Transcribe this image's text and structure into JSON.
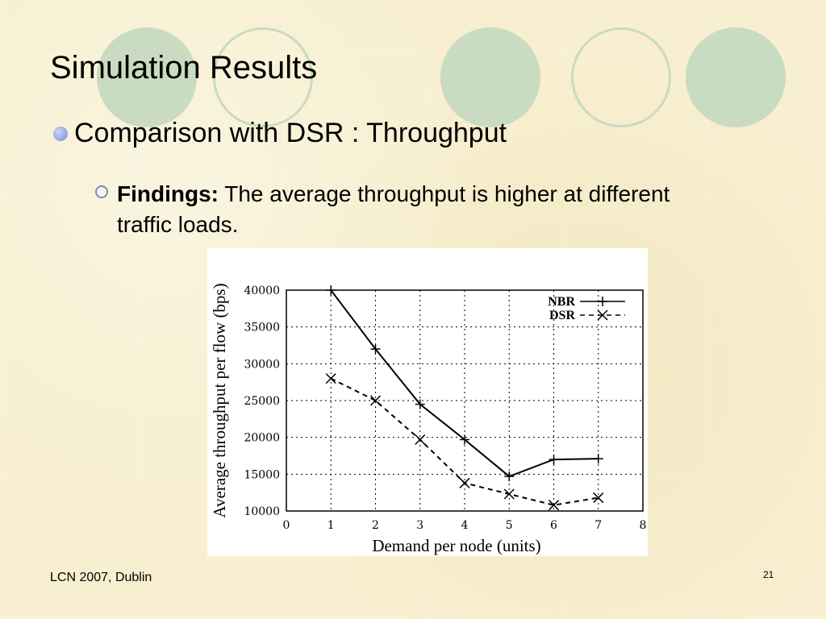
{
  "slide": {
    "title": "Simulation Results",
    "bullet": "Comparison with DSR : Throughput",
    "findings_label": "Findings:",
    "findings_text": " The average throughput is higher at different traffic loads.",
    "footer_left": "LCN 2007, Dublin",
    "page_number": "21"
  },
  "colors": {
    "decor_circles": "#c9dbc0",
    "bullet": "#6f8fcf",
    "background": "#f7efcf"
  },
  "chart_data": {
    "type": "line",
    "xlabel": "Demand per node (units)",
    "ylabel": "Average throughput per flow (bps)",
    "xlim": [
      0,
      8
    ],
    "ylim": [
      10000,
      40000
    ],
    "xticks": [
      0,
      1,
      2,
      3,
      4,
      5,
      6,
      7,
      8
    ],
    "yticks": [
      10000,
      15000,
      20000,
      25000,
      30000,
      35000,
      40000
    ],
    "grid": true,
    "legend_position": "top-right",
    "series": [
      {
        "name": "NBR",
        "marker": "+",
        "dash": "solid",
        "x": [
          1,
          2,
          3,
          4,
          5,
          6,
          7
        ],
        "y": [
          40000,
          32000,
          24500,
          19700,
          14700,
          17000,
          17100
        ]
      },
      {
        "name": "DSR",
        "marker": "x",
        "dash": "dashed",
        "x": [
          1,
          2,
          3,
          4,
          5,
          6,
          7
        ],
        "y": [
          28000,
          25000,
          19700,
          13800,
          12300,
          10800,
          11800
        ]
      }
    ]
  }
}
